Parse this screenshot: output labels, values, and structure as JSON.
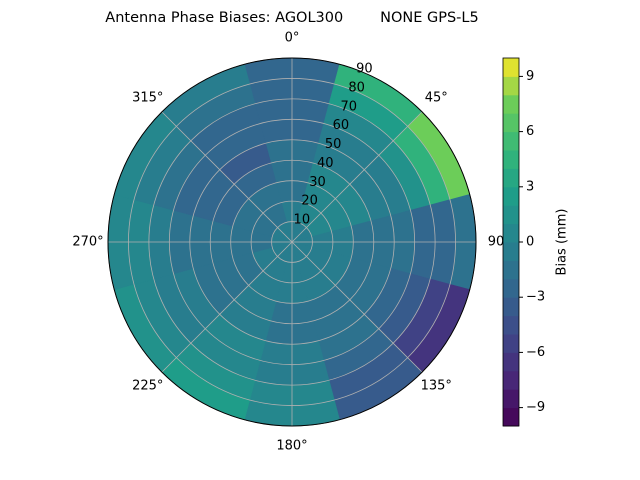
{
  "chart_data": {
    "type": "polar_contour",
    "title": "Antenna Phase Biases: AGOL300        NONE GPS-L5",
    "colormap": "viridis",
    "azimuth": [
      0,
      30,
      60,
      90,
      120,
      150,
      180,
      210,
      240,
      270,
      300,
      330
    ],
    "zenith": [
      5,
      15,
      25,
      35,
      45,
      55,
      65,
      75,
      85
    ],
    "values": [
      [
        0,
        0,
        -1,
        -1,
        -1,
        -2,
        -2,
        -2,
        -2
      ],
      [
        0,
        1,
        1,
        1,
        0,
        0,
        1,
        3,
        5
      ],
      [
        0,
        1,
        1,
        1,
        0,
        0,
        2,
        5,
        8
      ],
      [
        0,
        0,
        0,
        -1,
        -1,
        -1,
        -2,
        -2,
        -1
      ],
      [
        0,
        0,
        0,
        -1,
        -1,
        -2,
        -3,
        -5,
        -6
      ],
      [
        0,
        0,
        0,
        -1,
        -1,
        -1,
        -2,
        -3,
        -3
      ],
      [
        0,
        0,
        0,
        -1,
        -1,
        0,
        0,
        1,
        1
      ],
      [
        0,
        0,
        0,
        0,
        0,
        1,
        1,
        2,
        3
      ],
      [
        0,
        0,
        -1,
        -1,
        -1,
        0,
        0,
        1,
        2
      ],
      [
        0,
        -1,
        -1,
        -1,
        -1,
        -1,
        0,
        1,
        1
      ],
      [
        0,
        -1,
        -1,
        -2,
        -2,
        -2,
        -1,
        0,
        1
      ],
      [
        0,
        -1,
        -1,
        -2,
        -3,
        -2,
        -2,
        -1,
        0
      ]
    ],
    "rlim": [
      0,
      90
    ],
    "rticks": [
      10,
      20,
      30,
      40,
      50,
      60,
      70,
      80,
      90
    ],
    "thetaticks": [
      {
        "value": 0,
        "label": "0°"
      },
      {
        "value": 45,
        "label": "45°"
      },
      90,
      {
        "value": 135,
        "label": "135°"
      },
      {
        "value": 180,
        "label": "180°"
      },
      {
        "value": 225,
        "label": "225°"
      },
      {
        "value": 270,
        "label": "270°"
      },
      {
        "value": 315,
        "label": "315°"
      }
    ],
    "colorbar_label": "Bias (mm)",
    "levels": [
      -10,
      -9,
      -8,
      -7,
      -6,
      -5,
      -4,
      -3,
      -2,
      -1,
      0,
      1,
      2,
      3,
      4,
      5,
      6,
      7,
      8,
      9,
      10
    ],
    "clim": [
      -10,
      10
    ],
    "cticks": [
      {
        "value": -9,
        "label": "−9"
      },
      {
        "value": -6,
        "label": "−6"
      },
      {
        "value": -3,
        "label": "−3"
      },
      0,
      3,
      6,
      9
    ],
    "grid": true
  }
}
